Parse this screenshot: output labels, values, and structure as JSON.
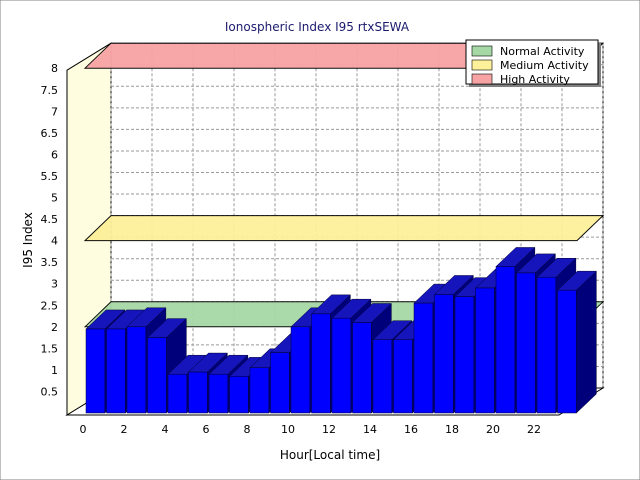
{
  "chart_data": {
    "type": "bar",
    "title": "Ionospheric Index I95 rtxSEWA",
    "xlabel": "Hour[Local time]",
    "ylabel": "I95 Index",
    "x_ticks": [
      "0",
      "2",
      "4",
      "6",
      "8",
      "10",
      "12",
      "14",
      "16",
      "18",
      "20",
      "22"
    ],
    "y_ticks": [
      "0.5",
      "1",
      "1.5",
      "2",
      "2.5",
      "3",
      "3.5",
      "4",
      "4.5",
      "5",
      "5.5",
      "6",
      "6.5",
      "7",
      "7.5",
      "8"
    ],
    "ylim": [
      0,
      8
    ],
    "grid": true,
    "legend_position": "top-right",
    "hours": [
      0,
      1,
      2,
      3,
      4,
      5,
      6,
      7,
      8,
      9,
      10,
      11,
      12,
      13,
      14,
      15,
      16,
      17,
      18,
      19,
      20,
      21,
      22,
      23
    ],
    "values": [
      1.95,
      1.95,
      2.0,
      1.75,
      0.9,
      0.95,
      0.9,
      0.85,
      1.05,
      1.4,
      2.0,
      2.3,
      2.2,
      2.1,
      1.7,
      1.7,
      2.55,
      2.75,
      2.7,
      2.9,
      3.4,
      3.25,
      3.15,
      2.85
    ],
    "bands": [
      {
        "name": "Normal Activity",
        "from": 0,
        "to": 2,
        "color": "#a6d8a6"
      },
      {
        "name": "Medium Activity",
        "from": 2,
        "to": 4,
        "color": "#fdf09a"
      },
      {
        "name": "High Activity",
        "from": 4,
        "to": 8,
        "color": "#f7a3a3"
      }
    ],
    "bar_colors": {
      "front": "#0000ff",
      "top": "#1515bb",
      "side": "#00007a"
    }
  }
}
